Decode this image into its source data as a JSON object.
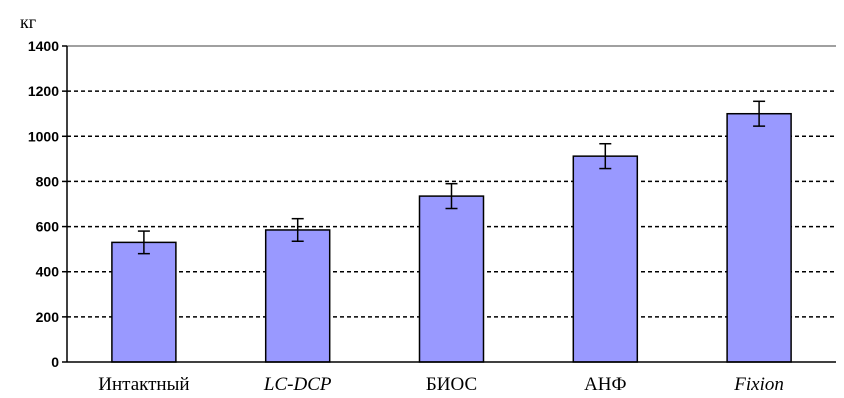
{
  "chart_data": {
    "type": "bar",
    "ylabel": "кг",
    "ylim": [
      0,
      1400
    ],
    "yticks": [
      0,
      200,
      400,
      600,
      800,
      1000,
      1200,
      1400
    ],
    "grid": true,
    "categories": [
      "Интактный",
      "LC-DCP",
      "БИОС",
      "АНФ",
      "Fixion"
    ],
    "italic_categories": [
      "LC-DCP",
      "Fixion"
    ],
    "values": [
      530,
      585,
      735,
      912,
      1100
    ],
    "errors": [
      50,
      50,
      55,
      55,
      55
    ],
    "colors": {
      "bar_fill": "#9999ff",
      "bar_stroke": "#000000",
      "grid": "#000000",
      "axis": "#000000"
    }
  }
}
